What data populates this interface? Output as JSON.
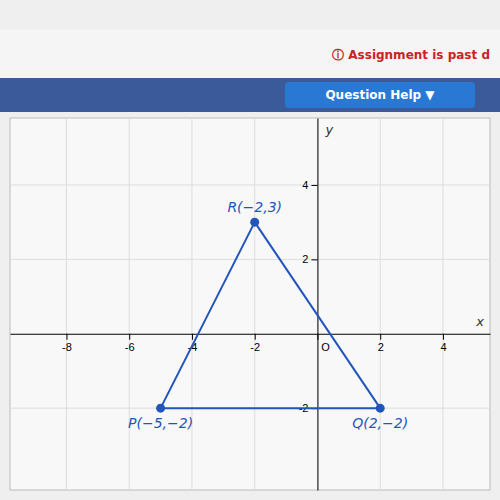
{
  "chart_data": {
    "type": "scatter",
    "xlabel": "x",
    "ylabel": "y",
    "annotations": [
      {
        "text": "ⓘ Assignment is past d",
        "color": "#cc2222"
      },
      {
        "text": "Question Help ▼",
        "color": "#2979d4"
      }
    ],
    "series": [
      {
        "type": "line",
        "color": "#2255bb",
        "line_style": "solid",
        "x": [
          -5,
          -2,
          2,
          -5
        ],
        "values": [
          -2,
          3,
          -2,
          -2
        ]
      },
      {
        "type": "scatter",
        "color": "#2255bb",
        "marker": "circle",
        "x": [
          -2,
          -5,
          2
        ],
        "values": [
          3,
          -2,
          -2
        ],
        "value_labels": [
          "R(−2,3)",
          "P(−5,−2)",
          "Q(2,−2)"
        ]
      }
    ],
    "data_labels": true,
    "xlim": [
      -9.8,
      5.5
    ],
    "ylim": [
      -4.2,
      5.8
    ],
    "xticks": [
      -8,
      -6,
      -4,
      -2,
      {
        "value": 0,
        "label": "O"
      },
      2,
      4
    ],
    "yticks": [
      -2,
      2,
      4
    ],
    "grid": true
  }
}
